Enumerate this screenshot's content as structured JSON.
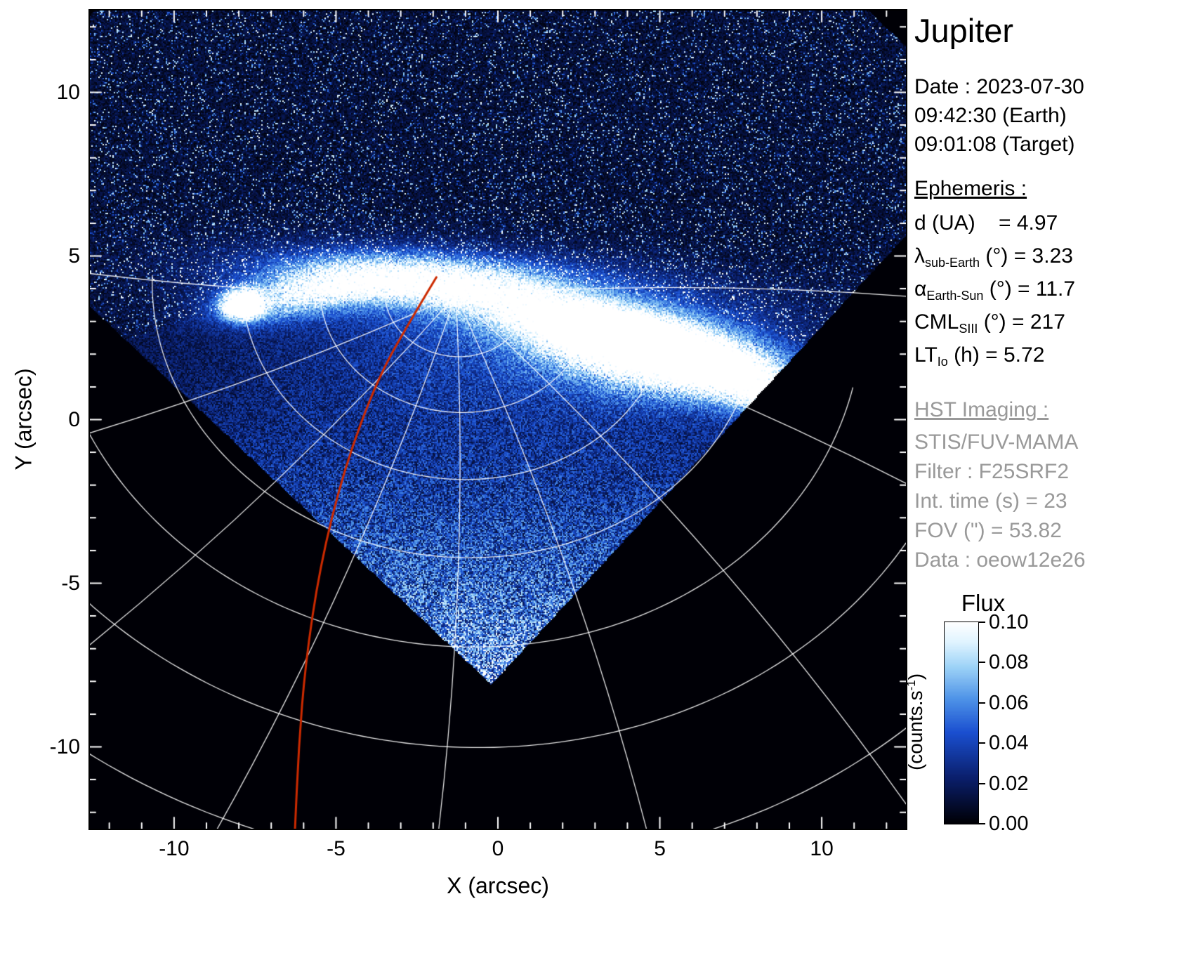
{
  "panel": {
    "title": "Jupiter",
    "date_line": "Date : 2023-07-30",
    "time_earth": "09:42:30 (Earth)",
    "time_target": "09:01:08 (Target)",
    "ephemeris_heading": "Ephemeris :",
    "ephemeris": [
      {
        "sym": "d",
        "sub": "",
        "rest": " (UA)    = 4.97"
      },
      {
        "sym": "λ",
        "sub": "sub-Earth",
        "rest": " (°) = 3.23"
      },
      {
        "sym": "α",
        "sub": "Earth-Sun",
        "rest": " (°) = 11.7"
      },
      {
        "sym": "CML",
        "sub": "SIII",
        "rest": " (°) = 217"
      },
      {
        "sym": "LT",
        "sub": "Io",
        "rest": " (h) = 5.72"
      }
    ],
    "hst_heading": "HST Imaging :",
    "hst_lines": [
      "STIS/FUV-MAMA",
      "Filter : F25SRF2",
      "Int. time (s) = 23",
      "FOV (\") = 53.82",
      "Data : oeow12e26"
    ]
  },
  "chart_data": {
    "type": "heatmap",
    "title": "Jupiter — HST STIS/FUV-MAMA far-UV image with planetary graticule and Io footprint track",
    "xlabel": "X (arcsec)",
    "ylabel": "Y (arcsec)",
    "xlim": [
      -12.6,
      12.6
    ],
    "ylim": [
      -12.5,
      12.5
    ],
    "x_major_ticks": [
      -10,
      -5,
      0,
      5,
      10
    ],
    "y_major_ticks": [
      -10,
      -5,
      0,
      5,
      10
    ],
    "minor_tick_step": 1,
    "grid": false,
    "page_background": "#ffffff",
    "plot_background": "#000000",
    "frame_color": "#000000",
    "detector_fov": {
      "bottom_vertex": [
        -0.2,
        -8.1
      ],
      "side": 23.0,
      "rotation_deg": 47
    },
    "limb": {
      "a": 4.35,
      "x0": -1.2,
      "k": 55,
      "base": 0.14,
      "ramp": 0.02,
      "ramp2": 0.0016
    },
    "colormap_stops": [
      {
        "p": 0.0,
        "c": "#000006"
      },
      {
        "p": 0.22,
        "c": "#0a1e6a"
      },
      {
        "p": 0.45,
        "c": "#1a4fd0"
      },
      {
        "p": 0.62,
        "c": "#4f94e8"
      },
      {
        "p": 0.78,
        "c": "#9fd4f7"
      },
      {
        "p": 0.9,
        "c": "#e0f4ff"
      },
      {
        "p": 1.0,
        "c": "#ffffff"
      }
    ],
    "aurora_blobs": [
      {
        "x": 5.2,
        "y": 1.9,
        "sx": 2.6,
        "sy": 0.8,
        "rot": -8,
        "amp": 1.15
      },
      {
        "x": 2.0,
        "y": 3.0,
        "sx": 2.4,
        "sy": 0.55,
        "rot": -10,
        "amp": 0.5
      },
      {
        "x": -2.6,
        "y": 4.3,
        "sx": 2.9,
        "sy": 0.5,
        "rot": -3,
        "amp": 0.8
      },
      {
        "x": -6.4,
        "y": 3.7,
        "sx": 1.7,
        "sy": 0.45,
        "rot": 8,
        "amp": 0.6
      },
      {
        "x": -7.9,
        "y": 3.5,
        "sx": 0.4,
        "sy": 0.3,
        "rot": 0,
        "amp": 1.4
      },
      {
        "x": 7.8,
        "y": 1.1,
        "sx": 1.8,
        "sy": 0.55,
        "rot": -22,
        "amp": 0.65
      },
      {
        "x": 0.5,
        "y": 3.9,
        "sx": 5.5,
        "sy": 0.85,
        "rot": -4,
        "amp": 0.3
      },
      {
        "x": -0.5,
        "y": 2.0,
        "sx": 4.5,
        "sy": 1.5,
        "rot": -6,
        "amp": 0.16
      },
      {
        "x": 3.9,
        "y": 2.5,
        "sx": 1.6,
        "sy": 0.5,
        "rot": -12,
        "amp": 0.55
      }
    ],
    "graticule": {
      "color": "#ffffff",
      "pole": [
        -1.3,
        3.8
      ],
      "lat_radii": [
        2.2,
        4.2,
        6.6,
        9.4,
        12.6,
        16.2,
        20.4,
        24.8
      ],
      "ellipse_ratio": 0.85,
      "rot_deg": -8,
      "arc_start_deg": 185,
      "arc_end_deg": 355,
      "meridian_angles_deg": [
        172,
        196,
        220,
        243,
        265,
        287,
        310,
        334,
        356
      ],
      "meridian_len": 27,
      "meridian_curve_deg": 8
    },
    "io_footprint_track": {
      "color": "#cc2a00",
      "width": 3,
      "points": [
        [
          -1.9,
          4.35
        ],
        [
          -2.6,
          3.2
        ],
        [
          -3.7,
          1.3
        ],
        [
          -4.75,
          -1.5
        ],
        [
          -5.5,
          -4.5
        ],
        [
          -5.95,
          -7.5
        ],
        [
          -6.15,
          -10.0
        ],
        [
          -6.27,
          -12.6
        ]
      ]
    },
    "colorbar": {
      "title": "Flux",
      "unit_main": "(counts.s",
      "unit_sup": "-1",
      "unit_close": ")",
      "ticks": [
        "0.10",
        "0.08",
        "0.06",
        "0.04",
        "0.02",
        "0.00"
      ],
      "vmin": 0,
      "vmax": 0.1
    }
  }
}
